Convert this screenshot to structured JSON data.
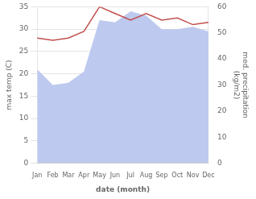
{
  "chart_data": {
    "type": "line",
    "categories": [
      "Jan",
      "Feb",
      "Mar",
      "Apr",
      "May",
      "Jun",
      "Jul",
      "Aug",
      "Sep",
      "Oct",
      "Nov",
      "Dec"
    ],
    "series": [
      {
        "type": "area",
        "color": "#bdc9ee",
        "values": [
          21.0,
          17.5,
          18.0,
          20.5,
          32.0,
          31.5,
          34.0,
          33.0,
          30.0,
          30.0,
          30.5,
          29.5
        ]
      },
      {
        "type": "line",
        "color": "#c0504d",
        "values": [
          28.0,
          27.5,
          28.0,
          29.5,
          35.0,
          33.5,
          32.0,
          33.5,
          32.0,
          32.5,
          31.0,
          31.5
        ]
      }
    ],
    "xlabel": "date (month)",
    "ylabel": "max temp (C)",
    "y2label": "med. precipitation\n(kg/m2)",
    "ylim": [
      0,
      35
    ],
    "yticks": [
      0,
      5,
      10,
      15,
      20,
      25,
      30,
      35
    ],
    "y2lim": [
      0,
      60
    ],
    "y2ticks": [
      0,
      10,
      20,
      30,
      40,
      50,
      60
    ],
    "grid": true
  }
}
